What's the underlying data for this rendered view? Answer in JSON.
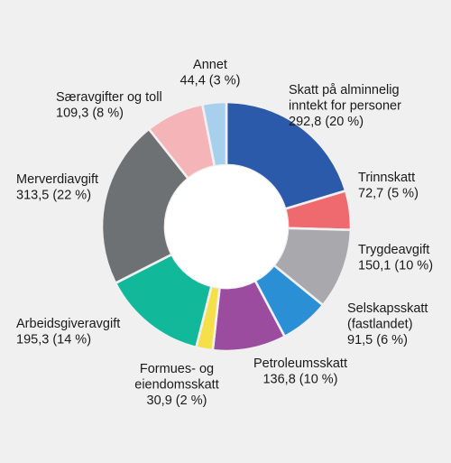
{
  "chart_data": {
    "type": "pie",
    "variant": "donut",
    "title": "",
    "unit_note": "",
    "slices": [
      {
        "name": "Skatt på alminnelig inntekt for personer",
        "label_lines": [
          "Skatt på alminnelig",
          "inntekt for personer",
          "292,8 (20 %)"
        ],
        "value": 292.8,
        "percent": 20,
        "color": "#2b5aab"
      },
      {
        "name": "Trinnskatt",
        "label_lines": [
          "Trinnskatt",
          "72,7 (5 %)"
        ],
        "value": 72.7,
        "percent": 5,
        "color": "#ef6a6e"
      },
      {
        "name": "Trygdeavgift",
        "label_lines": [
          "Trygdeavgift",
          "150,1 (10 %)"
        ],
        "value": 150.1,
        "percent": 10,
        "color": "#a9a9ad"
      },
      {
        "name": "Selskapsskatt (fastlandet)",
        "label_lines": [
          "Selskapsskatt",
          "(fastlandet)",
          "91,5 (6 %)"
        ],
        "value": 91.5,
        "percent": 6,
        "color": "#2b8fd6"
      },
      {
        "name": "Petroleumsskatt",
        "label_lines": [
          "Petroleumsskatt",
          "136,8 (10 %)"
        ],
        "value": 136.8,
        "percent": 10,
        "color": "#9b4c9e"
      },
      {
        "name": "Formues- og eiendomsskatt",
        "label_lines": [
          "Formues- og",
          "eiendomsskatt",
          "30,9 (2 %)"
        ],
        "value": 30.9,
        "percent": 2,
        "color": "#f5e04a"
      },
      {
        "name": "Arbeidsgiveravgift",
        "label_lines": [
          "Arbeidsgiveravgift",
          "195,3 (14 %)"
        ],
        "value": 195.3,
        "percent": 14,
        "color": "#12b89a"
      },
      {
        "name": "Merverdiavgift",
        "label_lines": [
          "Merverdiavgift",
          "313,5 (22 %)"
        ],
        "value": 313.5,
        "percent": 22,
        "color": "#6e7173"
      },
      {
        "name": "Særavgifter og toll",
        "label_lines": [
          "Særavgifter og toll",
          "109,3 (8 %)"
        ],
        "value": 109.3,
        "percent": 8,
        "color": "#f5b4b8"
      },
      {
        "name": "Annet",
        "label_lines": [
          "Annet",
          "44,4 (3 %)"
        ],
        "value": 44.4,
        "percent": 3,
        "color": "#a8d0ec"
      }
    ],
    "start": "12 o'clock",
    "direction": "clockwise",
    "background": "#f0f0f0"
  }
}
